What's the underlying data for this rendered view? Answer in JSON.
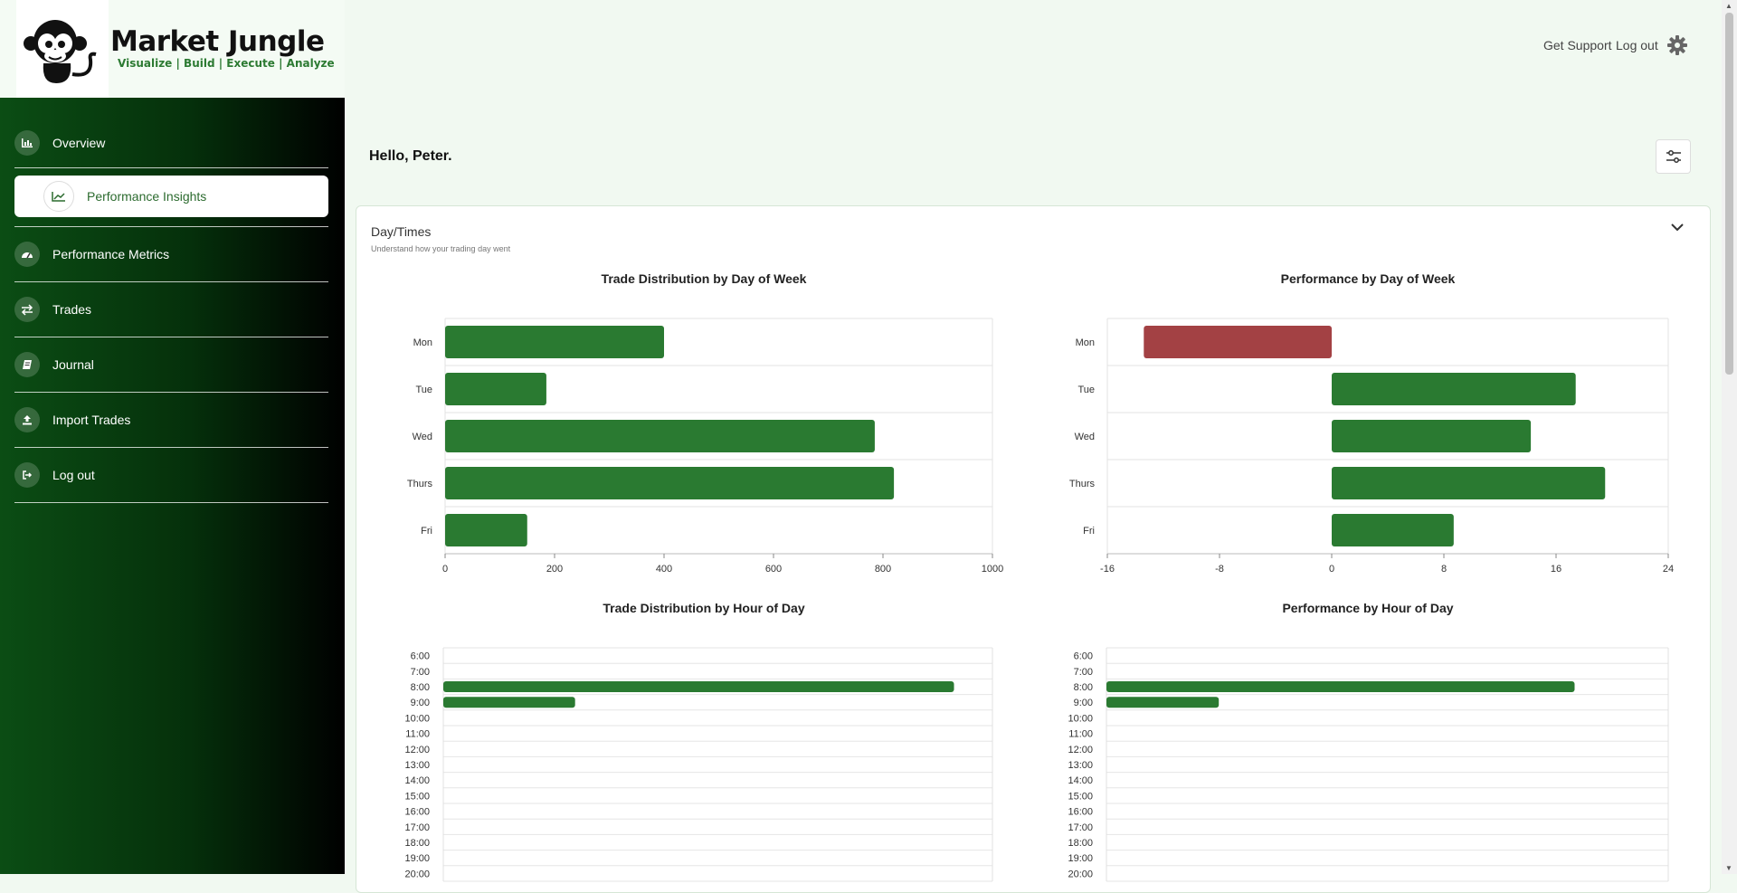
{
  "brand": {
    "name": "Market Jungle",
    "tagline": "Visualize | Build | Execute | Analyze"
  },
  "header": {
    "support_label": "Get Support",
    "logout_label": "Log out"
  },
  "sidebar": {
    "items": [
      {
        "label": "Overview",
        "icon": "bar-chart-icon"
      },
      {
        "label": "Performance Insights",
        "icon": "line-chart-icon",
        "active": true
      },
      {
        "label": "Performance Metrics",
        "icon": "gauge-icon"
      },
      {
        "label": "Trades",
        "icon": "swap-arrows-icon"
      },
      {
        "label": "Journal",
        "icon": "book-icon"
      },
      {
        "label": "Import Trades",
        "icon": "upload-icon"
      },
      {
        "label": "Log out",
        "icon": "logout-icon"
      }
    ]
  },
  "main": {
    "greeting": "Hello, Peter.",
    "section_title": "Day/Times",
    "section_subtitle": "Understand how your trading day went"
  },
  "colors": {
    "positive": "#2a7a31",
    "negative": "#a34144"
  },
  "chart_data": [
    {
      "type": "bar",
      "title": "Trade Distribution by Day of Week",
      "orientation": "horizontal",
      "categories": [
        "Mon",
        "Tue",
        "Wed",
        "Thurs",
        "Fri"
      ],
      "values": [
        400,
        185,
        785,
        820,
        150
      ],
      "xlim": [
        0,
        1000
      ],
      "xticks": [
        0,
        200,
        400,
        600,
        800,
        1000
      ],
      "xtick_labels": [
        "0",
        "200",
        "400",
        "600",
        "800",
        "1000"
      ]
    },
    {
      "type": "bar",
      "title": "Performance by Day of Week",
      "orientation": "horizontal",
      "categories": [
        "Mon",
        "Tue",
        "Wed",
        "Thurs",
        "Fri"
      ],
      "values": [
        -13.4,
        17.4,
        14.2,
        19.5,
        8.7
      ],
      "xlim": [
        -16,
        24
      ],
      "xticks": [
        -16,
        -8,
        0,
        8,
        16,
        24
      ],
      "xtick_labels": [
        "-16",
        "-8",
        "0",
        "8",
        "16",
        "24"
      ]
    },
    {
      "type": "bar",
      "title": "Trade Distribution by Hour of Day",
      "orientation": "horizontal",
      "categories": [
        "6:00",
        "7:00",
        "8:00",
        "9:00",
        "10:00",
        "11:00",
        "12:00",
        "13:00",
        "14:00",
        "15:00",
        "16:00",
        "17:00",
        "18:00",
        "19:00",
        "20:00"
      ],
      "values": [
        0,
        0,
        930,
        240,
        0,
        0,
        0,
        0,
        0,
        0,
        0,
        0,
        0,
        0,
        0
      ],
      "xlim": [
        0,
        1000
      ]
    },
    {
      "type": "bar",
      "title": "Performance by Hour of Day",
      "orientation": "horizontal",
      "categories": [
        "6:00",
        "7:00",
        "8:00",
        "9:00",
        "10:00",
        "11:00",
        "12:00",
        "13:00",
        "14:00",
        "15:00",
        "16:00",
        "17:00",
        "18:00",
        "19:00",
        "20:00"
      ],
      "values": [
        0,
        0,
        25,
        6,
        0,
        0,
        0,
        0,
        0,
        0,
        0,
        0,
        0,
        0,
        0
      ],
      "xlim": [
        0,
        30
      ]
    }
  ]
}
